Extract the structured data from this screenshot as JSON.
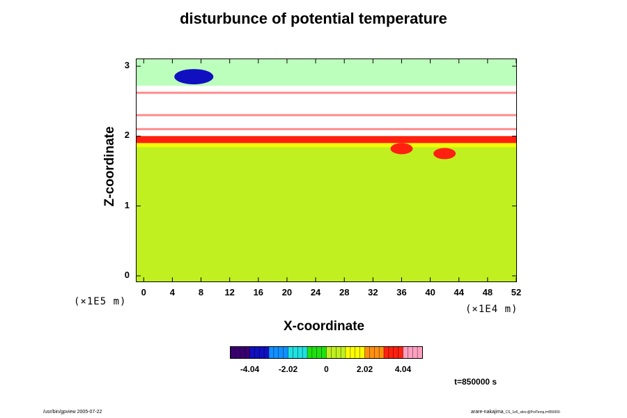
{
  "chart_data": {
    "type": "heatmap",
    "title": "disturbunce of potential temperature",
    "xlabel": "X-coordinate",
    "ylabel": "Z-coordinate",
    "x_unit": "(×1E4 m)",
    "y_unit": "(×1E5 m)",
    "xlim": [
      -1,
      52
    ],
    "ylim": [
      -0.08,
      3.1
    ],
    "x_ticks": [
      0,
      4,
      8,
      12,
      16,
      20,
      24,
      28,
      32,
      36,
      40,
      44,
      48,
      52
    ],
    "y_ticks": [
      0,
      1,
      2,
      3
    ],
    "colorbar": {
      "range": [
        -5.05,
        5.05
      ],
      "ticks": [
        -4.04,
        -2.02,
        0,
        2.02,
        4.04
      ],
      "tick_labels": [
        "-4.04",
        "-2.02",
        "0",
        "2.02",
        "4.04"
      ],
      "colors": [
        "#3a0070",
        "#1010c0",
        "#1090ff",
        "#20e0e0",
        "#20e010",
        "#c0f020",
        "#ffff00",
        "#ff9010",
        "#ff2010",
        "#ffa0c0"
      ]
    },
    "features": [
      {
        "desc": "near-zero background",
        "value": 0.2
      },
      {
        "desc": "warm layer at top of troposphere",
        "x_range": [
          -1,
          52
        ],
        "z_range": [
          1.9,
          2.0
        ],
        "value": 3.5
      },
      {
        "desc": "warm plume",
        "x": 36,
        "z": 1.82,
        "value": 4.0
      },
      {
        "desc": "warm plume",
        "x": 42,
        "z": 1.75,
        "value": 3.5
      },
      {
        "desc": "cold anomaly near top",
        "x": 7,
        "z": 2.85,
        "value": -4.0
      }
    ],
    "annotation": "t=850000 s"
  },
  "footer": {
    "left": "/usr/bin/gpview 2005-07-22",
    "right": "arare-nakajima",
    "right_small": "_CS_1e5_stinc@PotTemp,t=850000"
  }
}
